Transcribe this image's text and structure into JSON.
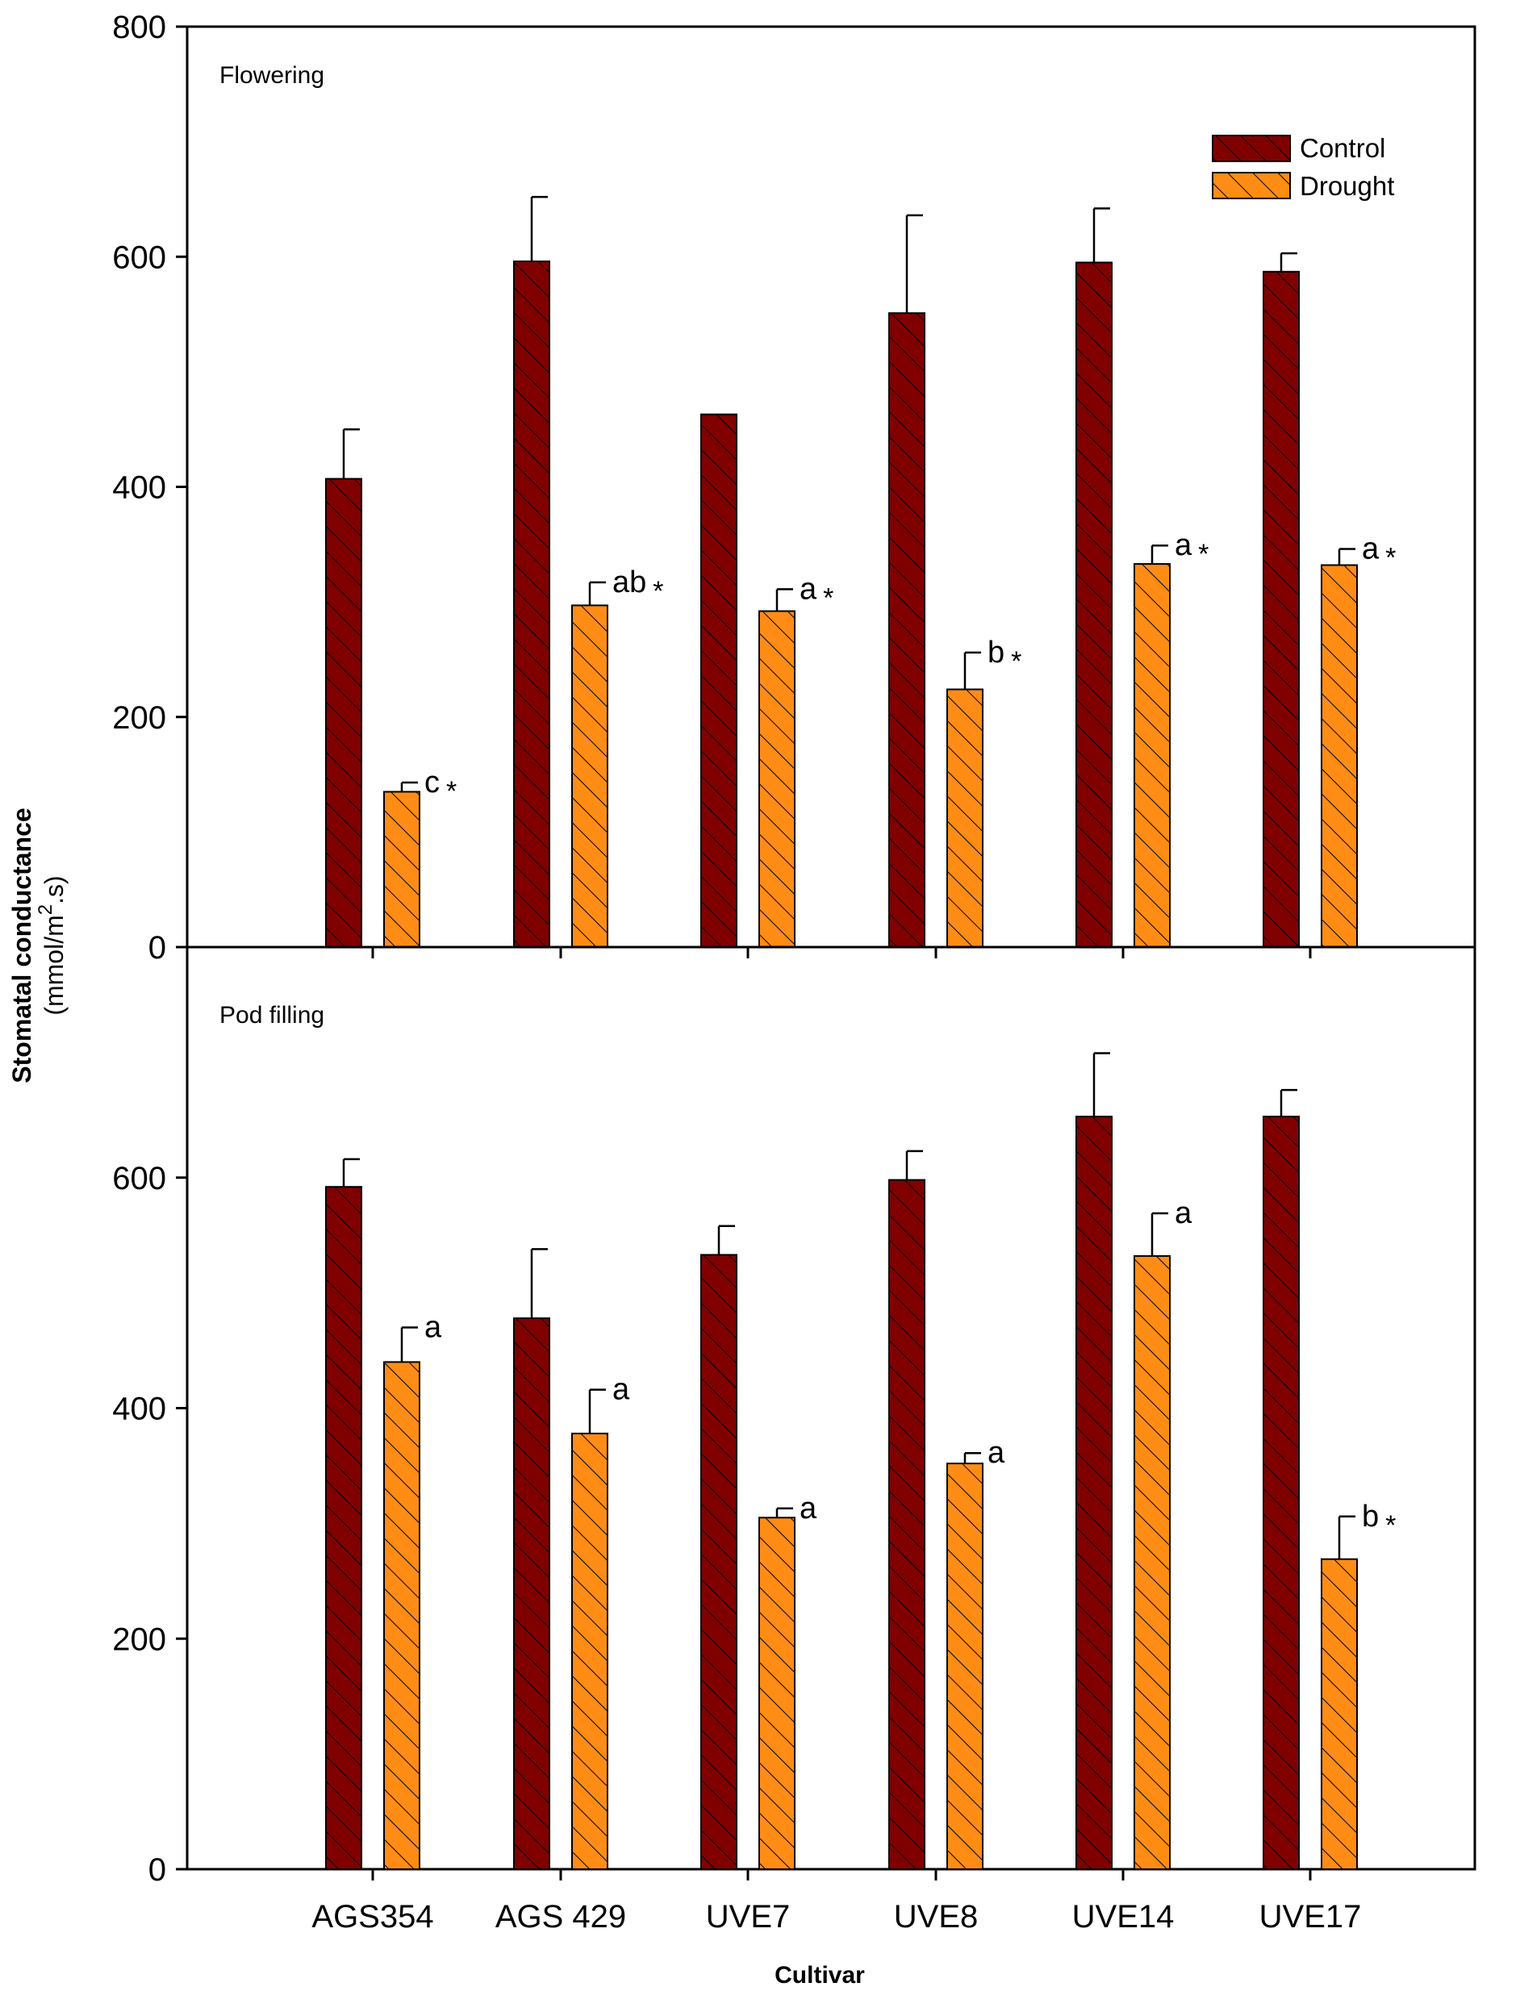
{
  "chart_data": {
    "type": "bar",
    "categories": [
      "AGS354",
      "AGS 429",
      "UVE7",
      "UVE8",
      "UVE14",
      "UVE17"
    ],
    "xlabel": "Cultivar",
    "ylabel": "Stomatal conductance",
    "ylabel_unit_pre": "(mmol/m",
    "ylabel_unit_sup": "2",
    "ylabel_unit_post": ".s)",
    "ylim": [
      0,
      800
    ],
    "yticks": [
      0,
      200,
      400,
      600,
      800
    ],
    "legend": {
      "position": "top-right",
      "entries": [
        {
          "name": "Control",
          "color": "#800000"
        },
        {
          "name": "Drought",
          "color": "#ff8c14"
        }
      ]
    },
    "panels": [
      {
        "label": "Flowering",
        "yticks": [
          "0",
          "200",
          "400",
          "600",
          "800"
        ],
        "series": [
          {
            "name": "Control",
            "values": [
              407,
              596,
              463,
              551,
              595,
              587
            ],
            "errors": [
              43,
              56,
              0,
              85,
              47,
              16
            ],
            "annotations": [
              "",
              "",
              "",
              "",
              "",
              ""
            ]
          },
          {
            "name": "Drought",
            "values": [
              135,
              297,
              292,
              224,
              333,
              332
            ],
            "errors": [
              8,
              20,
              19,
              32,
              16,
              14
            ],
            "annotations": [
              "c *",
              "ab *",
              "a *",
              "b *",
              "a *",
              "a *"
            ]
          }
        ]
      },
      {
        "label": "Pod filling",
        "yticks": [
          "0",
          "200",
          "400",
          "600"
        ],
        "series": [
          {
            "name": "Control",
            "values": [
              592,
              478,
              533,
              598,
              653,
              653
            ],
            "errors": [
              24,
              60,
              25,
              25,
              55,
              23
            ],
            "annotations": [
              "",
              "",
              "",
              "",
              "",
              ""
            ]
          },
          {
            "name": "Drought",
            "values": [
              440,
              378,
              305,
              352,
              532,
              269
            ],
            "errors": [
              30,
              38,
              8,
              9,
              37,
              37
            ],
            "annotations": [
              "a",
              "a",
              "a",
              "a",
              "a",
              "b *"
            ]
          }
        ]
      }
    ]
  }
}
